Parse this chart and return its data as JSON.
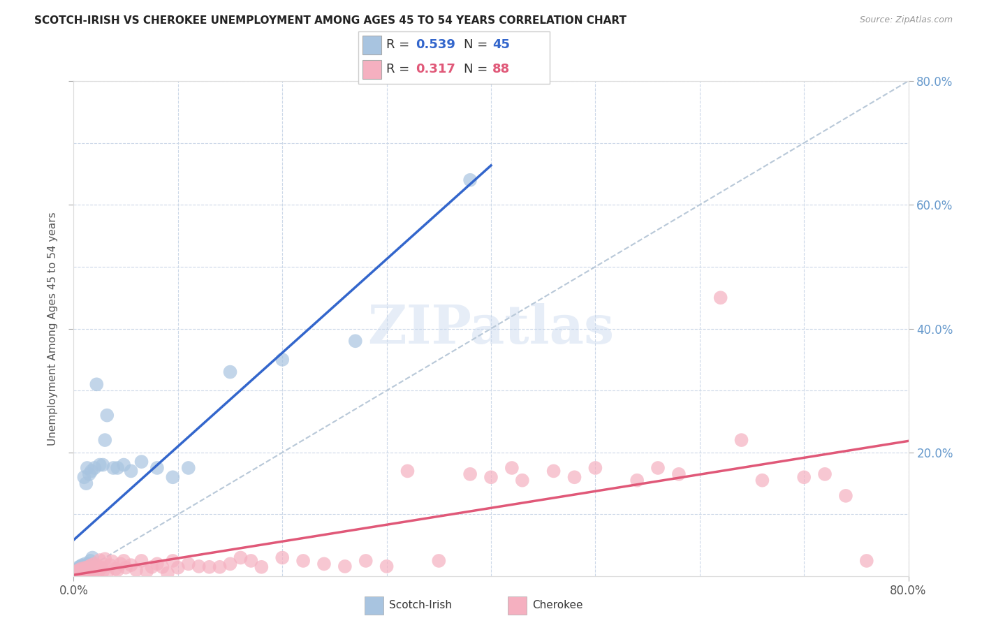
{
  "title": "SCOTCH-IRISH VS CHEROKEE UNEMPLOYMENT AMONG AGES 45 TO 54 YEARS CORRELATION CHART",
  "source": "Source: ZipAtlas.com",
  "ylabel": "Unemployment Among Ages 45 to 54 years",
  "xlim": [
    0.0,
    0.8
  ],
  "ylim": [
    0.0,
    0.8
  ],
  "scotch_irish_color": "#a8c4e0",
  "cherokee_color": "#f5b0c0",
  "scotch_irish_line_color": "#3366cc",
  "cherokee_line_color": "#e05878",
  "diagonal_line_color": "#b8c8d8",
  "tick_label_color": "#6699cc",
  "grid_color": "#ccd8e8",
  "background_color": "#ffffff",
  "legend_R_color": "#3366cc",
  "legend_N_color": "#3366cc",
  "legend_R2_color": "#e05878",
  "legend_N2_color": "#e05878",
  "scotch_irish_R": "0.539",
  "scotch_irish_N": "45",
  "cherokee_R": "0.317",
  "cherokee_N": "88",
  "scotch_irish_x": [
    0.001,
    0.002,
    0.002,
    0.003,
    0.003,
    0.004,
    0.004,
    0.005,
    0.005,
    0.005,
    0.006,
    0.006,
    0.007,
    0.007,
    0.008,
    0.008,
    0.009,
    0.01,
    0.01,
    0.011,
    0.012,
    0.013,
    0.014,
    0.015,
    0.016,
    0.017,
    0.018,
    0.02,
    0.022,
    0.025,
    0.028,
    0.03,
    0.032,
    0.038,
    0.042,
    0.048,
    0.055,
    0.065,
    0.08,
    0.095,
    0.11,
    0.15,
    0.2,
    0.27,
    0.38
  ],
  "scotch_irish_y": [
    0.004,
    0.006,
    0.01,
    0.005,
    0.008,
    0.006,
    0.012,
    0.007,
    0.01,
    0.015,
    0.008,
    0.014,
    0.01,
    0.016,
    0.012,
    0.018,
    0.015,
    0.017,
    0.16,
    0.02,
    0.15,
    0.175,
    0.02,
    0.165,
    0.025,
    0.17,
    0.03,
    0.175,
    0.31,
    0.18,
    0.18,
    0.22,
    0.26,
    0.175,
    0.175,
    0.18,
    0.17,
    0.185,
    0.175,
    0.16,
    0.175,
    0.33,
    0.35,
    0.38,
    0.64
  ],
  "cherokee_x": [
    0.001,
    0.002,
    0.002,
    0.003,
    0.003,
    0.004,
    0.004,
    0.005,
    0.005,
    0.006,
    0.006,
    0.007,
    0.007,
    0.008,
    0.008,
    0.009,
    0.01,
    0.01,
    0.011,
    0.012,
    0.013,
    0.014,
    0.015,
    0.015,
    0.016,
    0.017,
    0.018,
    0.019,
    0.02,
    0.02,
    0.022,
    0.023,
    0.025,
    0.025,
    0.027,
    0.028,
    0.03,
    0.032,
    0.035,
    0.037,
    0.04,
    0.042,
    0.045,
    0.048,
    0.05,
    0.055,
    0.06,
    0.065,
    0.07,
    0.075,
    0.08,
    0.085,
    0.09,
    0.095,
    0.1,
    0.11,
    0.12,
    0.13,
    0.14,
    0.15,
    0.16,
    0.17,
    0.18,
    0.2,
    0.22,
    0.24,
    0.26,
    0.28,
    0.3,
    0.32,
    0.35,
    0.38,
    0.4,
    0.43,
    0.46,
    0.5,
    0.54,
    0.58,
    0.62,
    0.66,
    0.7,
    0.72,
    0.74,
    0.76,
    0.42,
    0.48,
    0.56,
    0.64
  ],
  "cherokee_y": [
    0.004,
    0.003,
    0.006,
    0.005,
    0.008,
    0.004,
    0.007,
    0.006,
    0.01,
    0.005,
    0.009,
    0.007,
    0.012,
    0.006,
    0.01,
    0.004,
    0.008,
    0.013,
    0.01,
    0.014,
    0.009,
    0.007,
    0.011,
    0.016,
    0.013,
    0.018,
    0.01,
    0.007,
    0.014,
    0.02,
    0.017,
    0.005,
    0.026,
    0.012,
    0.014,
    0.008,
    0.028,
    0.005,
    0.018,
    0.024,
    0.012,
    0.01,
    0.02,
    0.025,
    0.014,
    0.018,
    0.01,
    0.025,
    0.008,
    0.015,
    0.02,
    0.015,
    0.005,
    0.025,
    0.014,
    0.02,
    0.016,
    0.015,
    0.015,
    0.02,
    0.03,
    0.025,
    0.015,
    0.03,
    0.025,
    0.02,
    0.016,
    0.025,
    0.016,
    0.17,
    0.025,
    0.165,
    0.16,
    0.155,
    0.17,
    0.175,
    0.155,
    0.165,
    0.45,
    0.155,
    0.16,
    0.165,
    0.13,
    0.025,
    0.175,
    0.16,
    0.175,
    0.22
  ]
}
